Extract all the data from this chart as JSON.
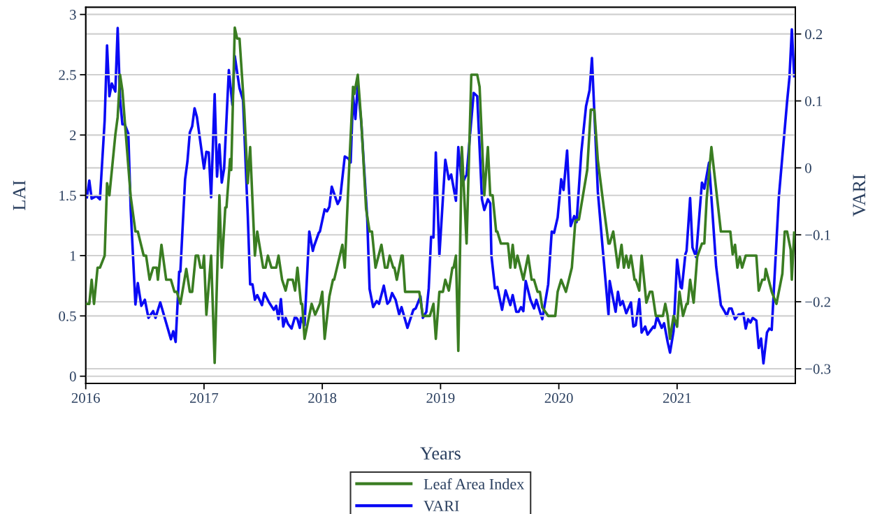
{
  "chart_data": {
    "type": "line",
    "xlabel": "Years",
    "ylabel": "LAI",
    "y2label": "VARI",
    "xlim": [
      2016,
      2022
    ],
    "xticks": [
      {
        "value": 2016,
        "label": "2016"
      },
      {
        "value": 2017,
        "label": "2017"
      },
      {
        "value": 2018,
        "label": "2018"
      },
      {
        "value": 2019,
        "label": "2019"
      },
      {
        "value": 2020,
        "label": "2020"
      },
      {
        "value": 2021,
        "label": "2021"
      }
    ],
    "ylim": [
      -0.06,
      3.06
    ],
    "yticks": [
      0,
      0.5,
      1,
      1.5,
      2,
      2.5,
      3
    ],
    "y2lim": [
      -0.322,
      0.24
    ],
    "y2ticks": [
      {
        "value": -0.3,
        "label": "−0.3"
      },
      {
        "value": -0.2,
        "label": "−0.2"
      },
      {
        "value": -0.1,
        "label": "−0.1"
      },
      0,
      0.1,
      0.2
    ],
    "grid": true,
    "legend": "bottom",
    "line_style": "solid",
    "marker": "none",
    "series": [
      {
        "name": "Leaf Area Index",
        "color": "#3a7d22",
        "x": [
          2016.01,
          2016.03,
          2016.05,
          2016.07,
          2016.1,
          2016.12,
          2016.16,
          2016.18,
          2016.2,
          2016.25,
          2016.27,
          2016.29,
          2016.31,
          2016.34,
          2016.38,
          2016.42,
          2016.44,
          2016.49,
          2016.51,
          2016.54,
          2016.57,
          2016.6,
          2016.61,
          2016.64,
          2016.68,
          2016.72,
          2016.75,
          2016.77,
          2016.8,
          2016.85,
          2016.88,
          2016.9,
          2016.93,
          2016.95,
          2016.97,
          2016.99,
          2017.0,
          2017.02,
          2017.06,
          2017.09,
          2017.13,
          2017.15,
          2017.18,
          2017.19,
          2017.22,
          2017.23,
          2017.26,
          2017.28,
          2017.3,
          2017.34,
          2017.37,
          2017.39,
          2017.43,
          2017.45,
          2017.5,
          2017.52,
          2017.54,
          2017.57,
          2017.61,
          2017.63,
          2017.66,
          2017.69,
          2017.71,
          2017.73,
          2017.75,
          2017.77,
          2017.79,
          2017.82,
          2017.83,
          2017.85,
          2017.91,
          2017.94,
          2017.98,
          2018.0,
          2018.02,
          2018.06,
          2018.09,
          2018.1,
          2018.17,
          2018.19,
          2018.23,
          2018.26,
          2018.27,
          2018.3,
          2018.33,
          2018.37,
          2018.4,
          2018.42,
          2018.45,
          2018.5,
          2018.53,
          2018.55,
          2018.57,
          2018.6,
          2018.61,
          2018.63,
          2018.67,
          2018.68,
          2018.7,
          2018.82,
          2018.85,
          2018.91,
          2018.94,
          2018.96,
          2018.99,
          2019.02,
          2019.04,
          2019.07,
          2019.1,
          2019.11,
          2019.13,
          2019.15,
          2019.18,
          2019.22,
          2019.26,
          2019.31,
          2019.33,
          2019.37,
          2019.4,
          2019.42,
          2019.44,
          2019.47,
          2019.48,
          2019.51,
          2019.57,
          2019.59,
          2019.61,
          2019.63,
          2019.65,
          2019.7,
          2019.74,
          2019.77,
          2019.79,
          2019.82,
          2019.84,
          2019.86,
          2019.91,
          2019.97,
          2019.99,
          2020.02,
          2020.06,
          2020.11,
          2020.14,
          2020.17,
          2020.24,
          2020.27,
          2020.3,
          2020.33,
          2020.38,
          2020.42,
          2020.43,
          2020.46,
          2020.5,
          2020.53,
          2020.55,
          2020.57,
          2020.59,
          2020.61,
          2020.64,
          2020.65,
          2020.68,
          2020.7,
          2020.74,
          2020.77,
          2020.79,
          2020.82,
          2020.88,
          2020.9,
          2020.92,
          2020.94,
          2020.97,
          2021.0,
          2021.02,
          2021.05,
          2021.08,
          2021.09,
          2021.11,
          2021.14,
          2021.17,
          2021.21,
          2021.23,
          2021.25,
          2021.29,
          2021.33,
          2021.37,
          2021.45,
          2021.47,
          2021.49,
          2021.51,
          2021.53,
          2021.55,
          2021.58,
          2021.67,
          2021.69,
          2021.72,
          2021.74,
          2021.75,
          2021.8,
          2021.84,
          2021.89,
          2021.91,
          2021.93,
          2021.96,
          2021.97,
          2021.99
        ],
        "values": [
          0.6,
          0.6,
          0.8,
          0.6,
          0.9,
          0.9,
          1.0,
          1.6,
          1.5,
          2.0,
          2.15,
          2.5,
          2.37,
          1.99,
          1.49,
          1.2,
          1.2,
          1.0,
          1.0,
          0.8,
          0.9,
          0.9,
          0.8,
          1.09,
          0.8,
          0.8,
          0.7,
          0.7,
          0.6,
          0.89,
          0.7,
          0.7,
          1.0,
          1.0,
          0.9,
          0.9,
          1.0,
          0.51,
          1.0,
          0.11,
          1.5,
          0.9,
          1.4,
          1.4,
          1.8,
          1.71,
          2.89,
          2.8,
          2.8,
          2.21,
          1.6,
          1.9,
          1.0,
          1.2,
          0.9,
          0.9,
          1.0,
          0.9,
          0.9,
          1.0,
          0.8,
          0.71,
          0.8,
          0.8,
          0.8,
          0.71,
          0.9,
          0.6,
          0.6,
          0.31,
          0.6,
          0.51,
          0.6,
          0.7,
          0.31,
          0.66,
          0.8,
          0.8,
          1.09,
          0.9,
          1.79,
          2.4,
          2.34,
          2.5,
          2.11,
          1.39,
          1.2,
          1.2,
          0.9,
          1.09,
          0.9,
          0.9,
          1.0,
          0.9,
          0.9,
          0.8,
          1.0,
          1.0,
          0.7,
          0.7,
          0.5,
          0.5,
          0.6,
          0.31,
          0.7,
          0.7,
          0.8,
          0.71,
          0.9,
          0.9,
          1.0,
          0.21,
          1.9,
          1.1,
          2.5,
          2.5,
          2.4,
          1.5,
          1.9,
          1.5,
          1.5,
          1.2,
          1.2,
          1.1,
          1.1,
          0.9,
          1.09,
          0.9,
          1.0,
          0.8,
          1.0,
          0.8,
          0.8,
          0.7,
          0.7,
          0.57,
          0.5,
          0.5,
          0.7,
          0.8,
          0.7,
          0.9,
          1.29,
          1.3,
          1.71,
          2.21,
          2.21,
          1.79,
          1.4,
          1.1,
          1.1,
          1.2,
          0.9,
          1.09,
          0.9,
          1.0,
          0.9,
          1.0,
          0.8,
          0.8,
          0.71,
          1.0,
          0.61,
          0.7,
          0.7,
          0.5,
          0.5,
          0.6,
          0.5,
          0.31,
          0.5,
          0.41,
          0.7,
          0.5,
          0.6,
          0.6,
          0.8,
          0.61,
          0.99,
          1.1,
          1.1,
          1.47,
          1.9,
          1.55,
          1.2,
          1.2,
          1.01,
          1.09,
          0.9,
          0.99,
          0.9,
          1.0,
          1.0,
          0.71,
          0.8,
          0.8,
          0.89,
          0.7,
          0.6,
          0.85,
          1.2,
          1.2,
          1.05,
          0.8,
          1.19
        ]
      },
      {
        "name": "VARI",
        "color": "#0a0af5",
        "axis": "y2",
        "x": [
          2016.01,
          2016.03,
          2016.05,
          2016.09,
          2016.12,
          2016.16,
          2016.18,
          2016.2,
          2016.22,
          2016.25,
          2016.27,
          2016.29,
          2016.31,
          2016.33,
          2016.36,
          2016.38,
          2016.42,
          2016.44,
          2016.47,
          2016.5,
          2016.53,
          2016.57,
          2016.59,
          2016.63,
          2016.72,
          2016.74,
          2016.76,
          2016.79,
          2016.8,
          2016.84,
          2016.86,
          2016.88,
          2016.9,
          2016.92,
          2016.94,
          2017.0,
          2017.02,
          2017.04,
          2017.06,
          2017.09,
          2017.11,
          2017.13,
          2017.15,
          2017.17,
          2017.21,
          2017.24,
          2017.26,
          2017.3,
          2017.33,
          2017.37,
          2017.39,
          2017.41,
          2017.43,
          2017.45,
          2017.49,
          2017.51,
          2017.55,
          2017.59,
          2017.61,
          2017.63,
          2017.65,
          2017.67,
          2017.69,
          2017.71,
          2017.74,
          2017.77,
          2017.79,
          2017.81,
          2017.82,
          2017.85,
          2017.89,
          2017.92,
          2017.93,
          2017.97,
          2017.98,
          2018.02,
          2018.04,
          2018.06,
          2018.08,
          2018.13,
          2018.15,
          2018.19,
          2018.22,
          2018.24,
          2018.26,
          2018.28,
          2018.3,
          2018.33,
          2018.38,
          2018.4,
          2018.43,
          2018.46,
          2018.48,
          2018.52,
          2018.55,
          2018.57,
          2018.59,
          2018.62,
          2018.65,
          2018.67,
          2018.72,
          2018.77,
          2018.79,
          2018.83,
          2018.85,
          2018.88,
          2018.9,
          2018.92,
          2018.94,
          2018.96,
          2018.99,
          2019.04,
          2019.07,
          2019.09,
          2019.13,
          2019.15,
          2019.18,
          2019.21,
          2019.22,
          2019.28,
          2019.31,
          2019.35,
          2019.37,
          2019.4,
          2019.42,
          2019.43,
          2019.46,
          2019.48,
          2019.52,
          2019.55,
          2019.59,
          2019.61,
          2019.64,
          2019.66,
          2019.68,
          2019.7,
          2019.72,
          2019.76,
          2019.79,
          2019.81,
          2019.86,
          2019.91,
          2019.94,
          2019.96,
          2019.99,
          2020.02,
          2020.04,
          2020.07,
          2020.1,
          2020.13,
          2020.15,
          2020.19,
          2020.23,
          2020.26,
          2020.28,
          2020.33,
          2020.37,
          2020.42,
          2020.43,
          2020.48,
          2020.5,
          2020.52,
          2020.54,
          2020.57,
          2020.61,
          2020.63,
          2020.65,
          2020.68,
          2020.7,
          2020.73,
          2020.75,
          2020.8,
          2020.81,
          2020.83,
          2020.87,
          2020.89,
          2020.92,
          2020.94,
          2020.97,
          2021.0,
          2021.03,
          2021.04,
          2021.07,
          2021.08,
          2021.11,
          2021.13,
          2021.16,
          2021.21,
          2021.23,
          2021.27,
          2021.33,
          2021.37,
          2021.4,
          2021.42,
          2021.44,
          2021.46,
          2021.49,
          2021.52,
          2021.54,
          2021.56,
          2021.58,
          2021.6,
          2021.62,
          2021.64,
          2021.67,
          2021.69,
          2021.71,
          2021.73,
          2021.76,
          2021.78,
          2021.8,
          2021.86,
          2021.93,
          2021.95,
          2021.97,
          2021.99
        ],
        "values": [
          -0.044,
          -0.019,
          -0.046,
          -0.042,
          -0.047,
          0.071,
          0.183,
          0.107,
          0.126,
          0.114,
          0.209,
          0.103,
          0.065,
          0.065,
          0.051,
          -0.062,
          -0.204,
          -0.172,
          -0.206,
          -0.197,
          -0.224,
          -0.214,
          -0.224,
          -0.201,
          -0.256,
          -0.244,
          -0.26,
          -0.155,
          -0.155,
          -0.017,
          0.01,
          0.053,
          0.062,
          0.089,
          0.076,
          -0.001,
          0.024,
          0.023,
          -0.044,
          0.11,
          -0.013,
          0.035,
          -0.022,
          -0.001,
          0.146,
          0.094,
          0.167,
          0.119,
          0.101,
          -0.072,
          -0.174,
          -0.174,
          -0.197,
          -0.19,
          -0.205,
          -0.187,
          -0.201,
          -0.212,
          -0.206,
          -0.226,
          -0.196,
          -0.237,
          -0.224,
          -0.233,
          -0.24,
          -0.222,
          -0.226,
          -0.239,
          -0.224,
          -0.235,
          -0.095,
          -0.124,
          -0.117,
          -0.097,
          -0.095,
          -0.062,
          -0.065,
          -0.058,
          -0.028,
          -0.054,
          -0.047,
          0.017,
          0.014,
          0.008,
          0.108,
          0.073,
          0.124,
          0.067,
          -0.076,
          -0.181,
          -0.208,
          -0.199,
          -0.203,
          -0.176,
          -0.203,
          -0.199,
          -0.187,
          -0.197,
          -0.219,
          -0.208,
          -0.239,
          -0.212,
          -0.21,
          -0.192,
          -0.224,
          -0.215,
          -0.18,
          -0.103,
          -0.104,
          0.023,
          -0.131,
          0.012,
          -0.017,
          -0.01,
          -0.049,
          0.031,
          -0.026,
          -0.013,
          -0.011,
          0.112,
          0.107,
          -0.047,
          -0.063,
          -0.047,
          -0.053,
          -0.131,
          -0.18,
          -0.178,
          -0.212,
          -0.183,
          -0.205,
          -0.19,
          -0.215,
          -0.215,
          -0.208,
          -0.214,
          -0.169,
          -0.197,
          -0.21,
          -0.197,
          -0.226,
          -0.174,
          -0.095,
          -0.097,
          -0.074,
          -0.017,
          -0.033,
          0.026,
          -0.087,
          -0.072,
          -0.081,
          0.023,
          0.092,
          0.116,
          0.164,
          -0.036,
          -0.119,
          -0.219,
          -0.169,
          -0.215,
          -0.185,
          -0.205,
          -0.199,
          -0.217,
          -0.201,
          -0.237,
          -0.235,
          -0.196,
          -0.246,
          -0.237,
          -0.249,
          -0.237,
          -0.239,
          -0.222,
          -0.239,
          -0.232,
          -0.26,
          -0.276,
          -0.244,
          -0.137,
          -0.178,
          -0.18,
          -0.129,
          -0.124,
          -0.045,
          -0.119,
          -0.133,
          -0.022,
          -0.031,
          0.008,
          -0.147,
          -0.205,
          -0.214,
          -0.221,
          -0.21,
          -0.21,
          -0.226,
          -0.219,
          -0.219,
          -0.217,
          -0.24,
          -0.226,
          -0.231,
          -0.224,
          -0.228,
          -0.269,
          -0.255,
          -0.292,
          -0.246,
          -0.24,
          -0.242,
          -0.044,
          0.099,
          0.135,
          0.207,
          0.137
        ]
      }
    ]
  }
}
